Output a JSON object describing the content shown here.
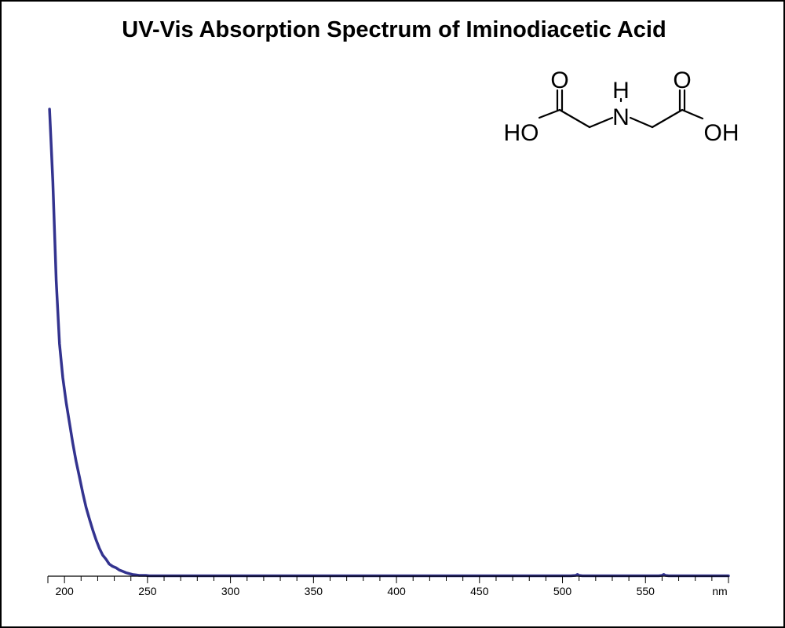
{
  "chart_data": {
    "type": "line",
    "title": "UV-Vis Absorption Spectrum of Iminodiacetic Acid",
    "xlabel": "",
    "ylabel": "",
    "x_unit_label": "nm",
    "xlim": [
      190,
      600
    ],
    "ylim": [
      0,
      1
    ],
    "x_ticks_major": [
      200,
      250,
      300,
      350,
      400,
      450,
      500,
      550
    ],
    "x_tick_minor_step": 10,
    "grid": false,
    "line_color": "#33338f",
    "series": [
      {
        "x": [
          191,
          193,
          195,
          197,
          199,
          201,
          203,
          205,
          207,
          209,
          211,
          213,
          215,
          217,
          219,
          221,
          223,
          225,
          227,
          229,
          231,
          233,
          235,
          237,
          239,
          241,
          243,
          245,
          247,
          249,
          251,
          253,
          260,
          300,
          350,
          400,
          450,
          500,
          505,
          508,
          509,
          510,
          512,
          515,
          530,
          550,
          558,
          560,
          561,
          562,
          564,
          570,
          600
        ],
        "y": [
          1.0,
          0.84,
          0.62,
          0.48,
          0.405,
          0.35,
          0.305,
          0.26,
          0.22,
          0.185,
          0.15,
          0.118,
          0.092,
          0.068,
          0.046,
          0.027,
          0.012,
          0.003,
          -0.008,
          -0.013,
          -0.016,
          -0.021,
          -0.024,
          -0.027,
          -0.029,
          -0.031,
          -0.032,
          -0.033,
          -0.033,
          -0.033,
          -0.034,
          -0.034,
          -0.034,
          -0.034,
          -0.034,
          -0.034,
          -0.034,
          -0.034,
          -0.034,
          -0.033,
          -0.031,
          -0.033,
          -0.034,
          -0.034,
          -0.034,
          -0.034,
          -0.034,
          -0.033,
          -0.031,
          -0.033,
          -0.034,
          -0.034,
          -0.034
        ]
      }
    ]
  },
  "molecule": {
    "atoms": {
      "o_left": "O",
      "o_right": "O",
      "h_amine": "H",
      "n_amine": "N",
      "ho_left": "HO",
      "oh_right": "OH"
    }
  }
}
